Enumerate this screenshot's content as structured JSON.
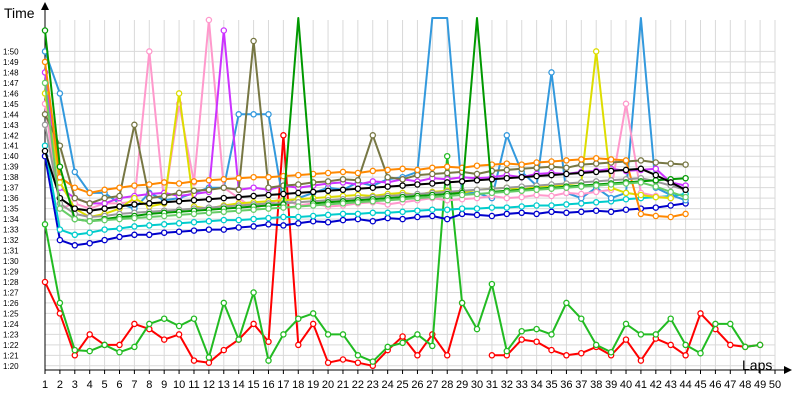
{
  "chart_data": {
    "type": "line",
    "title": "",
    "ylabel": "Time",
    "xlabel": "Laps",
    "x": [
      1,
      2,
      3,
      4,
      5,
      6,
      7,
      8,
      9,
      10,
      11,
      12,
      13,
      14,
      15,
      16,
      17,
      18,
      19,
      20,
      21,
      22,
      23,
      24,
      25,
      26,
      27,
      28,
      29,
      30,
      31,
      32,
      33,
      34,
      35,
      36,
      37,
      38,
      39,
      40,
      41,
      42,
      43,
      44,
      45,
      46,
      47,
      48,
      49,
      50
    ],
    "xlim": [
      1,
      50
    ],
    "ylim": [
      80,
      113
    ],
    "yticks": [
      {
        "v": 80,
        "label": "1:20"
      },
      {
        "v": 81,
        "label": "1:21"
      },
      {
        "v": 82,
        "label": "1:22"
      },
      {
        "v": 83,
        "label": "1:23"
      },
      {
        "v": 84,
        "label": "1:24"
      },
      {
        "v": 85,
        "label": "1:25"
      },
      {
        "v": 86,
        "label": "1:26"
      },
      {
        "v": 87,
        "label": "1:27"
      },
      {
        "v": 88,
        "label": "1:28"
      },
      {
        "v": 89,
        "label": "1:29"
      },
      {
        "v": 90,
        "label": "1:30"
      },
      {
        "v": 91,
        "label": "1:31"
      },
      {
        "v": 92,
        "label": "1:32"
      },
      {
        "v": 93,
        "label": "1:33"
      },
      {
        "v": 94,
        "label": "1:34"
      },
      {
        "v": 95,
        "label": "1:35"
      },
      {
        "v": 96,
        "label": "1:36"
      },
      {
        "v": 97,
        "label": "1:37"
      },
      {
        "v": 98,
        "label": "1:38"
      },
      {
        "v": 99,
        "label": "1:39"
      },
      {
        "v": 100,
        "label": "1:40"
      },
      {
        "v": 101,
        "label": "1:41"
      },
      {
        "v": 102,
        "label": "1:42"
      },
      {
        "v": 103,
        "label": "1:43"
      },
      {
        "v": 104,
        "label": "1:44"
      },
      {
        "v": 105,
        "label": "1:45"
      },
      {
        "v": 106,
        "label": "1:46"
      },
      {
        "v": 107,
        "label": "1:47"
      },
      {
        "v": 108,
        "label": "1:48"
      },
      {
        "v": 109,
        "label": "1:49"
      },
      {
        "v": 110,
        "label": "1:50"
      }
    ],
    "grid": true,
    "legend": "none",
    "series": [
      {
        "color": "#ff0000",
        "values": [
          88,
          85,
          81,
          83,
          82,
          82,
          84,
          83.5,
          82.5,
          83,
          80.5,
          80.3,
          81.5,
          82.5,
          84,
          82.3,
          102,
          82,
          84,
          80.3,
          80.6,
          80.3,
          80,
          81.5,
          82.8,
          81,
          83,
          81,
          86,
          null,
          81,
          81,
          82.5,
          82.3,
          81.5,
          81,
          81.2,
          81.8,
          81,
          82.5,
          80.5,
          82.6,
          82,
          81,
          85,
          83.5,
          82,
          81.8,
          82,
          null
        ]
      },
      {
        "color": "#22bb22",
        "values": [
          93.5,
          86,
          81.5,
          81.4,
          82,
          81.3,
          81.8,
          84,
          84.5,
          83.8,
          84.5,
          80.8,
          86,
          82.5,
          87,
          80.5,
          83,
          84.5,
          85,
          83,
          83,
          81,
          80.4,
          81.8,
          82.2,
          83,
          81.9,
          100,
          86,
          83.5,
          87.8,
          81.4,
          83.3,
          83.5,
          83,
          86,
          84.5,
          82,
          81.3,
          84,
          83,
          83,
          84.5,
          82,
          81.2,
          84,
          84,
          81.8,
          82,
          null
        ]
      },
      {
        "color": "#0000cc",
        "values": [
          100,
          92,
          91.5,
          91.7,
          92,
          92.3,
          92.5,
          92.5,
          92.7,
          92.8,
          92.9,
          93,
          93,
          93.2,
          93.3,
          93.5,
          93.4,
          93.6,
          93.8,
          93.7,
          93.9,
          94,
          93.8,
          94.1,
          94,
          94.2,
          94.3,
          94,
          94.5,
          94.4,
          94.3,
          94.5,
          94.6,
          94.5,
          94.7,
          94.6,
          94.7,
          94.8,
          94.7,
          94.9,
          95,
          95.1,
          95.3,
          95.5,
          null,
          null,
          null,
          null,
          null,
          null
        ]
      },
      {
        "color": "#00cccc",
        "values": [
          101,
          93,
          92.5,
          92.7,
          93,
          93.1,
          93.3,
          93.4,
          93.5,
          93.6,
          93.7,
          93.8,
          93.9,
          93.9,
          94,
          94.1,
          94.2,
          94.2,
          94.3,
          94.4,
          94.5,
          94.5,
          94.6,
          94.6,
          94.7,
          94.8,
          94.9,
          94.9,
          95,
          95,
          95.1,
          95.1,
          95.2,
          95.3,
          95.3,
          95.4,
          95.5,
          95.6,
          95.7,
          95.9,
          96,
          96.1,
          96.2,
          96.4,
          null,
          null,
          null,
          null,
          null,
          null
        ]
      },
      {
        "color": "#3399dd",
        "values": [
          110,
          106,
          98.5,
          96.5,
          96.5,
          95.5,
          95,
          96.5,
          95.8,
          96,
          96.5,
          97,
          97,
          104,
          104,
          104,
          95.5,
          96,
          96.5,
          97,
          96.8,
          97.5,
          97.2,
          97.8,
          98,
          98.5,
          115,
          115,
          96.5,
          96.5,
          96,
          102,
          98.5,
          97.2,
          108,
          96.5,
          96,
          97,
          96,
          96.5,
          115,
          97,
          96.3,
          95.8,
          null,
          null,
          null,
          null,
          null,
          null
        ]
      },
      {
        "color": "#ff99cc",
        "values": [
          105,
          95,
          95.5,
          95,
          95.5,
          95.5,
          95.7,
          110,
          95.5,
          105,
          97.5,
          113,
          97,
          96,
          95,
          95.5,
          96,
          95.3,
          95.5,
          95.2,
          95.3,
          95.5,
          95.6,
          95.4,
          95.6,
          95.8,
          96,
          95.8,
          95.9,
          96,
          96.2,
          96,
          96.1,
          96.3,
          96.2,
          96.5,
          96.4,
          96.6,
          96.8,
          105,
          96.5,
          96.2,
          96,
          null,
          null,
          null,
          null,
          null,
          null,
          null
        ]
      },
      {
        "color": "#cc33ff",
        "values": [
          108,
          97,
          96,
          95.5,
          95.5,
          96,
          96.2,
          96.4,
          96.5,
          96.2,
          96.4,
          96.6,
          112,
          96.8,
          97,
          96.8,
          97.2,
          97,
          97.2,
          97.4,
          97.5,
          97.3,
          97.6,
          97.5,
          97.8,
          97.6,
          97.9,
          97.8,
          98,
          97.9,
          98,
          98.2,
          98,
          98.3,
          98.4,
          98.3,
          98.5,
          98.6,
          98.8,
          98.6,
          98.7,
          98.8,
          97.5,
          97.2,
          null,
          null,
          null,
          null,
          null,
          null
        ]
      },
      {
        "color": "#dddd00",
        "values": [
          106,
          97.5,
          95,
          94.2,
          94.5,
          95,
          96,
          95.2,
          95.5,
          106,
          95.2,
          95,
          95.3,
          95.5,
          95.6,
          95.7,
          95.8,
          95.9,
          96,
          96.1,
          96.2,
          96.3,
          96.2,
          96.4,
          96.5,
          96.3,
          96.6,
          96.7,
          96.5,
          96.8,
          96.9,
          97,
          96.8,
          97.1,
          97.2,
          97.3,
          97.5,
          110,
          97,
          96.5,
          96.3,
          96.1,
          96,
          null,
          null,
          null,
          null,
          null,
          null,
          null
        ]
      },
      {
        "color": "#777744",
        "values": [
          104,
          101,
          96,
          95.5,
          96,
          96.2,
          103,
          96,
          96.2,
          96.5,
          96.7,
          96.8,
          97,
          96.8,
          111,
          97,
          97.2,
          97.3,
          97.5,
          97.6,
          97.8,
          97.7,
          102,
          98,
          97.8,
          98.2,
          98.3,
          98.4,
          98.5,
          98.3,
          98.6,
          98.7,
          98.8,
          98.9,
          99,
          98.9,
          99.2,
          99.3,
          99.4,
          99.5,
          99.6,
          99.4,
          99.3,
          99.2,
          null,
          null,
          null,
          null,
          null,
          null
        ]
      },
      {
        "color": "#ff8800",
        "values": [
          109,
          98,
          97,
          96.5,
          96.8,
          97,
          97.2,
          97.3,
          97.5,
          97.4,
          97.6,
          97.7,
          97.8,
          97.9,
          98,
          98,
          98.1,
          98.2,
          98.3,
          98.4,
          98.5,
          98.4,
          98.6,
          98.7,
          98.8,
          98.7,
          98.9,
          99,
          98.9,
          99.1,
          99.2,
          99.3,
          99.2,
          99.4,
          99.5,
          99.6,
          99.7,
          99.8,
          99.7,
          99.6,
          94.5,
          94.3,
          94.2,
          94.5,
          null,
          null,
          null,
          null,
          null,
          null
        ]
      },
      {
        "color": "#999999",
        "values": [
          103,
          95.5,
          94.5,
          94.2,
          94.3,
          94.5,
          94.6,
          94.7,
          94.8,
          94.9,
          95,
          95.1,
          95.2,
          95.3,
          95.4,
          95.5,
          95.5,
          95.6,
          95.7,
          95.8,
          95.9,
          96,
          96.1,
          96.2,
          96.3,
          96.4,
          96.5,
          96.6,
          96.7,
          96.8,
          96.9,
          97,
          97.1,
          97.2,
          97.3,
          97.4,
          97.5,
          97.6,
          97.7,
          97.8,
          97.9,
          97.6,
          97.2,
          96.8,
          null,
          null,
          null,
          null,
          null,
          null
        ]
      },
      {
        "color": "#009900",
        "values": [
          112,
          99,
          94,
          93.8,
          94,
          94.2,
          94.3,
          94.5,
          94.6,
          94.7,
          94.8,
          94.9,
          95,
          95.1,
          95.2,
          95.3,
          95.4,
          115,
          95.5,
          95.6,
          95.7,
          95.8,
          95.9,
          96,
          96.1,
          96.2,
          96.3,
          96.4,
          96.5,
          115,
          96.6,
          96.7,
          96.8,
          96.9,
          97,
          97.1,
          97.2,
          97.3,
          97.4,
          97.5,
          97.6,
          97.7,
          97.8,
          97.9,
          null,
          null,
          null,
          null,
          null,
          null
        ]
      },
      {
        "color": "#000000",
        "values": [
          100.5,
          96,
          95,
          94.8,
          95,
          95.2,
          95.4,
          95.5,
          95.6,
          95.7,
          95.8,
          95.9,
          96,
          96.1,
          96.2,
          96.3,
          96.4,
          96.5,
          96.6,
          96.7,
          96.8,
          96.9,
          97,
          97.1,
          97.2,
          97.3,
          97.4,
          97.5,
          97.6,
          97.7,
          97.8,
          97.9,
          98,
          98.1,
          98.2,
          98.3,
          98.4,
          98.5,
          98.6,
          98.7,
          98.8,
          98.2,
          97.5,
          96.8,
          null,
          null,
          null,
          null,
          null,
          null
        ]
      },
      {
        "color": "#66cc66",
        "values": [
          107,
          95,
          94,
          93.8,
          93.9,
          94,
          94.1,
          94.2,
          94.3,
          94.4,
          94.5,
          94.6,
          94.7,
          94.8,
          94.9,
          95,
          95.1,
          95.2,
          95.3,
          95.4,
          95.5,
          95.6,
          95.7,
          95.8,
          95.9,
          96,
          96.1,
          96.2,
          96.3,
          96.4,
          96.5,
          96.6,
          96.7,
          96.8,
          96.9,
          97,
          97.1,
          97.2,
          97.3,
          97.4,
          97.5,
          97.1,
          96.6,
          96.1,
          null,
          null,
          null,
          null,
          null,
          null
        ]
      }
    ]
  }
}
